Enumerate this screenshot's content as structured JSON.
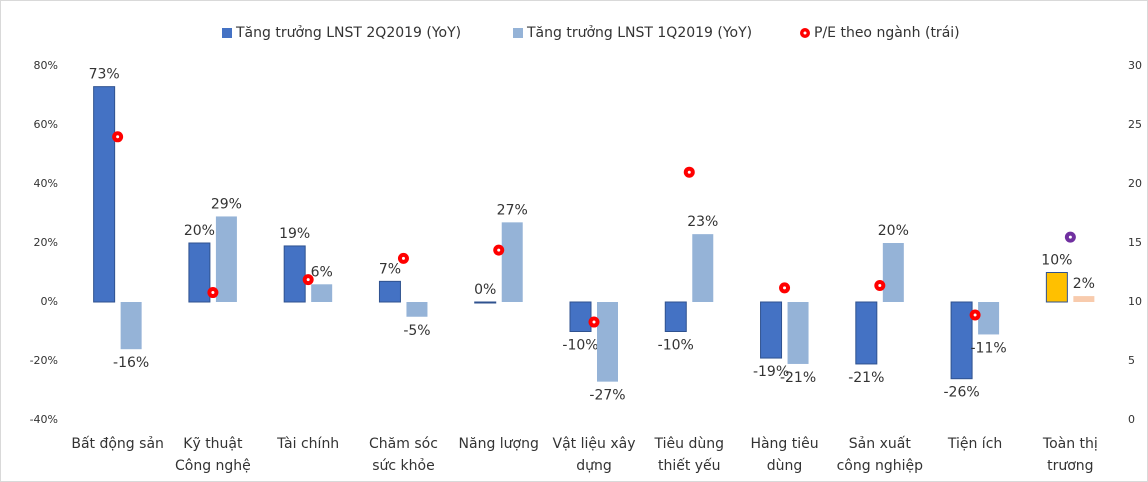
{
  "chart_data": {
    "type": "bar",
    "categories": [
      "Bất động sản",
      "Kỹ thuật\nCông nghệ",
      "Tài chính",
      "Chăm sóc\nsức khỏe",
      "Năng lượng",
      "Vật liệu xây\ndựng",
      "Tiêu dùng\nthiết yếu",
      "Hàng tiêu\ndùng",
      "Sản xuất\ncông nghiệp",
      "Tiện ích",
      "Toàn thị\ntrương"
    ],
    "series": [
      {
        "name": "Tăng trưởng LNST 2Q2019 (YoY)",
        "type": "bar",
        "color": "#4472c4",
        "point_colors": [
          "#4472c4",
          "#4472c4",
          "#4472c4",
          "#4472c4",
          "#4472c4",
          "#4472c4",
          "#4472c4",
          "#4472c4",
          "#4472c4",
          "#4472c4",
          "#ffc000"
        ],
        "values": [
          73,
          20,
          19,
          7,
          0,
          -10,
          -10,
          -19,
          -21,
          -26,
          10
        ],
        "value_labels": [
          "73%",
          "20%",
          "19%",
          "7%",
          "0%",
          "-10%",
          "-10%",
          "-19%",
          "-21%",
          "-26%",
          "10%"
        ]
      },
      {
        "name": "Tăng trưởng LNST 1Q2019 (YoY)",
        "type": "bar",
        "color": "#95b3d7",
        "point_colors": [
          "#95b3d7",
          "#95b3d7",
          "#95b3d7",
          "#95b3d7",
          "#95b3d7",
          "#95b3d7",
          "#95b3d7",
          "#95b3d7",
          "#95b3d7",
          "#95b3d7",
          "#f8cbad"
        ],
        "values": [
          -16,
          29,
          6,
          -5,
          27,
          -27,
          23,
          -21,
          20,
          -11,
          2
        ],
        "value_labels": [
          "-16%",
          "29%",
          "6%",
          "-5%",
          "27%",
          "-27%",
          "23%",
          "-21%",
          "20%",
          "-11%",
          "2%"
        ]
      },
      {
        "name": "P/E theo ngành (trái)",
        "type": "scatter",
        "axis": "y2",
        "color": "#ff0000",
        "point_colors": [
          "#ff0000",
          "#ff0000",
          "#ff0000",
          "#ff0000",
          "#ff0000",
          "#ff0000",
          "#ff0000",
          "#ff0000",
          "#ff0000",
          "#ff0000",
          "#7030a0"
        ],
        "values": [
          24,
          10.8,
          11.9,
          13.7,
          14.4,
          8.3,
          21,
          11.2,
          11.4,
          8.9,
          15.5
        ]
      }
    ],
    "ylim": [
      -40,
      80
    ],
    "yticks": [
      {
        "value": -40,
        "label": "-40%"
      },
      {
        "value": -20,
        "label": "-20%"
      },
      {
        "value": 0,
        "label": "0%"
      },
      {
        "value": 20,
        "label": "20%"
      },
      {
        "value": 40,
        "label": "40%"
      },
      {
        "value": 60,
        "label": "60%"
      },
      {
        "value": 80,
        "label": "80%"
      }
    ],
    "y2lim": [
      0,
      30
    ],
    "y2ticks": [
      0,
      5,
      10,
      15,
      20,
      25,
      30
    ],
    "legend": "top"
  }
}
